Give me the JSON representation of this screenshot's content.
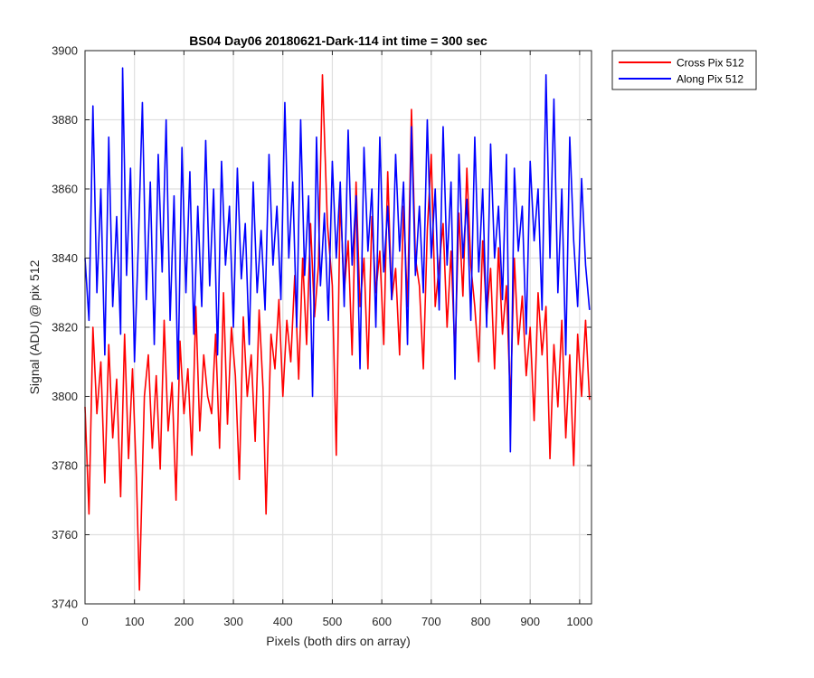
{
  "chart_data": {
    "type": "line",
    "title": "BS04 Day06 20180621-Dark-114 int time = 300 sec",
    "xlabel": "Pixels (both dirs on array)",
    "ylabel": "Signal (ADU) @ pix 512",
    "xlim": [
      0,
      1024
    ],
    "ylim": [
      3740,
      3900
    ],
    "xticks": [
      0,
      100,
      200,
      300,
      400,
      500,
      600,
      700,
      800,
      900,
      1000
    ],
    "yticks": [
      3740,
      3760,
      3780,
      3800,
      3820,
      3840,
      3860,
      3880,
      3900
    ],
    "grid": true,
    "legend_position": "outside-top-right",
    "series": [
      {
        "name": "Cross Pix 512",
        "color": "#ff0000",
        "x": [
          0,
          8,
          16,
          24,
          32,
          40,
          48,
          56,
          64,
          72,
          80,
          88,
          96,
          104,
          110,
          120,
          128,
          136,
          144,
          152,
          160,
          168,
          176,
          184,
          192,
          200,
          208,
          216,
          224,
          232,
          240,
          248,
          256,
          264,
          272,
          280,
          288,
          296,
          304,
          312,
          320,
          328,
          336,
          344,
          352,
          360,
          366,
          376,
          384,
          392,
          400,
          408,
          416,
          424,
          432,
          440,
          448,
          456,
          464,
          472,
          480,
          490,
          500,
          508,
          516,
          524,
          532,
          540,
          548,
          556,
          564,
          572,
          580,
          588,
          596,
          604,
          612,
          620,
          628,
          636,
          644,
          652,
          660,
          668,
          676,
          684,
          692,
          700,
          708,
          716,
          724,
          732,
          740,
          748,
          756,
          764,
          772,
          780,
          788,
          796,
          804,
          812,
          820,
          828,
          836,
          844,
          852,
          860,
          868,
          876,
          884,
          892,
          900,
          908,
          916,
          924,
          932,
          940,
          948,
          956,
          964,
          972,
          980,
          988,
          996,
          1004,
          1012,
          1020
        ],
        "y": [
          3797,
          3766,
          3820,
          3795,
          3810,
          3775,
          3815,
          3788,
          3805,
          3771,
          3818,
          3782,
          3808,
          3776,
          3744,
          3800,
          3812,
          3785,
          3806,
          3779,
          3822,
          3790,
          3804,
          3770,
          3816,
          3795,
          3808,
          3783,
          3826,
          3790,
          3812,
          3800,
          3795,
          3818,
          3785,
          3830,
          3792,
          3820,
          3806,
          3776,
          3823,
          3800,
          3812,
          3787,
          3825,
          3802,
          3766,
          3818,
          3808,
          3828,
          3800,
          3822,
          3810,
          3835,
          3805,
          3840,
          3815,
          3850,
          3823,
          3838,
          3893,
          3850,
          3832,
          3783,
          3858,
          3830,
          3845,
          3812,
          3862,
          3826,
          3840,
          3808,
          3852,
          3830,
          3842,
          3815,
          3865,
          3828,
          3837,
          3812,
          3855,
          3826,
          3883,
          3840,
          3832,
          3808,
          3848,
          3870,
          3826,
          3838,
          3850,
          3820,
          3842,
          3812,
          3853,
          3829,
          3866,
          3838,
          3826,
          3810,
          3845,
          3823,
          3837,
          3808,
          3843,
          3818,
          3832,
          3798,
          3840,
          3815,
          3829,
          3806,
          3820,
          3793,
          3830,
          3812,
          3826,
          3782,
          3815,
          3797,
          3822,
          3788,
          3812,
          3780,
          3818,
          3800,
          3822,
          3799
        ]
      },
      {
        "name": "Along Pix 512",
        "color": "#0000ff",
        "x": [
          0,
          8,
          16,
          24,
          32,
          40,
          48,
          56,
          64,
          72,
          76,
          84,
          92,
          100,
          108,
          116,
          124,
          132,
          140,
          148,
          156,
          164,
          172,
          180,
          188,
          196,
          204,
          212,
          220,
          228,
          236,
          244,
          252,
          260,
          268,
          276,
          284,
          292,
          300,
          308,
          316,
          324,
          332,
          340,
          348,
          356,
          364,
          372,
          380,
          388,
          396,
          404,
          412,
          420,
          428,
          436,
          444,
          452,
          460,
          468,
          476,
          484,
          492,
          500,
          508,
          516,
          524,
          532,
          540,
          548,
          556,
          564,
          572,
          580,
          588,
          596,
          604,
          612,
          620,
          628,
          636,
          644,
          652,
          660,
          668,
          676,
          684,
          692,
          700,
          708,
          716,
          724,
          732,
          740,
          748,
          756,
          764,
          772,
          780,
          788,
          796,
          804,
          812,
          820,
          828,
          836,
          844,
          852,
          860,
          868,
          876,
          884,
          892,
          900,
          908,
          916,
          924,
          932,
          940,
          948,
          956,
          964,
          972,
          980,
          988,
          996,
          1004,
          1012,
          1020
        ],
        "y": [
          3840,
          3822,
          3884,
          3830,
          3860,
          3812,
          3875,
          3826,
          3852,
          3818,
          3895,
          3835,
          3866,
          3810,
          3845,
          3885,
          3828,
          3862,
          3815,
          3870,
          3836,
          3880,
          3822,
          3858,
          3805,
          3872,
          3830,
          3865,
          3818,
          3855,
          3826,
          3874,
          3832,
          3860,
          3812,
          3868,
          3838,
          3855,
          3820,
          3866,
          3834,
          3850,
          3815,
          3862,
          3830,
          3848,
          3825,
          3870,
          3838,
          3855,
          3828,
          3885,
          3840,
          3862,
          3820,
          3880,
          3835,
          3858,
          3800,
          3875,
          3832,
          3853,
          3822,
          3868,
          3840,
          3862,
          3826,
          3877,
          3838,
          3858,
          3808,
          3872,
          3842,
          3860,
          3820,
          3875,
          3836,
          3855,
          3828,
          3870,
          3842,
          3862,
          3815,
          3878,
          3835,
          3855,
          3830,
          3880,
          3840,
          3860,
          3825,
          3878,
          3838,
          3862,
          3805,
          3870,
          3840,
          3857,
          3822,
          3875,
          3836,
          3860,
          3820,
          3873,
          3840,
          3855,
          3828,
          3870,
          3784,
          3866,
          3842,
          3855,
          3818,
          3868,
          3845,
          3860,
          3825,
          3893,
          3840,
          3886,
          3830,
          3860,
          3812,
          3875,
          3845,
          3826,
          3863,
          3838,
          3825
        ]
      }
    ]
  }
}
